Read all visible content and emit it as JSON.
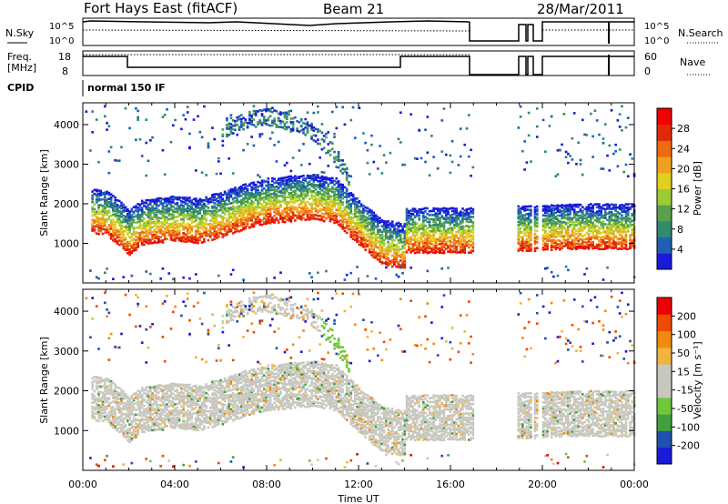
{
  "header": {
    "station": "Fort Hays East (fitACF)",
    "beam": "Beam 21",
    "date": "28/Mar/2011",
    "cpid_label": "CPID",
    "cpid_value": "normal 150 IF"
  },
  "noise_panel": {
    "left_label": "N.Sky",
    "right_label": "N.Search",
    "left_ticks": [
      "10^5",
      "10^0"
    ],
    "right_ticks": [
      "10^5",
      "10^0"
    ]
  },
  "freq_panel": {
    "left_label_1": "Freq.",
    "left_label_2": "[MHz]",
    "right_label": "Nave",
    "left_ticks": [
      "18",
      "8"
    ],
    "right_ticks": [
      "60",
      "0"
    ]
  },
  "colors": {
    "power": [
      "#1a1adc",
      "#1f5fb4",
      "#2f8a6e",
      "#59a04c",
      "#9bcc33",
      "#e0d020",
      "#f0a020",
      "#ee6a10",
      "#e02a08",
      "#f00000"
    ],
    "velocity": [
      "#ee0000",
      "#ee4a00",
      "#f08a10",
      "#f0b440",
      "#c8c8c0",
      "#c8c8c0",
      "#6ec83a",
      "#40a040",
      "#2050b0",
      "#1a1ad8"
    ]
  },
  "chart_data": [
    {
      "type": "heatmap",
      "title": "",
      "ylabel": "Slant Range [km]",
      "xlabel": "",
      "y_ticks": [
        1000,
        2000,
        3000,
        4000
      ],
      "ylim": [
        0,
        4550
      ],
      "xlim_hours": [
        0,
        24
      ],
      "colorbar": {
        "label": "Power [dB]",
        "ticks": [
          4,
          8,
          12,
          16,
          20,
          24,
          28
        ]
      },
      "echo_bands": [
        {
          "name": "main band",
          "x_hours": [
            0.3,
            1.0,
            2.0,
            2.5,
            4.0,
            5.0,
            6.0,
            7.0,
            8.0,
            9.0,
            10.0,
            11.0,
            12.0,
            13.0,
            14.0
          ],
          "range_km": [
            2000,
            1950,
            1450,
            1700,
            1800,
            1750,
            1900,
            2100,
            2250,
            2300,
            2350,
            2250,
            1700,
            1200,
            1100
          ]
        },
        {
          "name": "high band",
          "x_hours": [
            6.0,
            7.0,
            8.0,
            9.0,
            10.0,
            11.0,
            11.6
          ],
          "range_km": [
            3800,
            4200,
            4300,
            4150,
            3900,
            3300,
            2600
          ]
        },
        {
          "name": "late band",
          "x_hours": [
            14.0,
            17.0,
            19.0,
            19.8,
            21.0,
            24.0
          ],
          "range_km": [
            1500,
            1500,
            1550,
            1550,
            1600,
            1600
          ]
        }
      ]
    },
    {
      "type": "heatmap",
      "title": "",
      "ylabel": "Slant Range [km]",
      "xlabel": "Time UT",
      "x_ticks": [
        "00:00",
        "04:00",
        "08:00",
        "12:00",
        "16:00",
        "20:00",
        "00:00"
      ],
      "y_ticks": [
        1000,
        2000,
        3000,
        4000
      ],
      "ylim": [
        0,
        4550
      ],
      "xlim_hours": [
        0,
        24
      ],
      "colorbar": {
        "label": "Velocity [m s⁻¹]",
        "ticks": [
          "200",
          "100",
          "50",
          "15",
          "-15",
          "-50",
          "-100",
          "-200"
        ]
      }
    }
  ]
}
